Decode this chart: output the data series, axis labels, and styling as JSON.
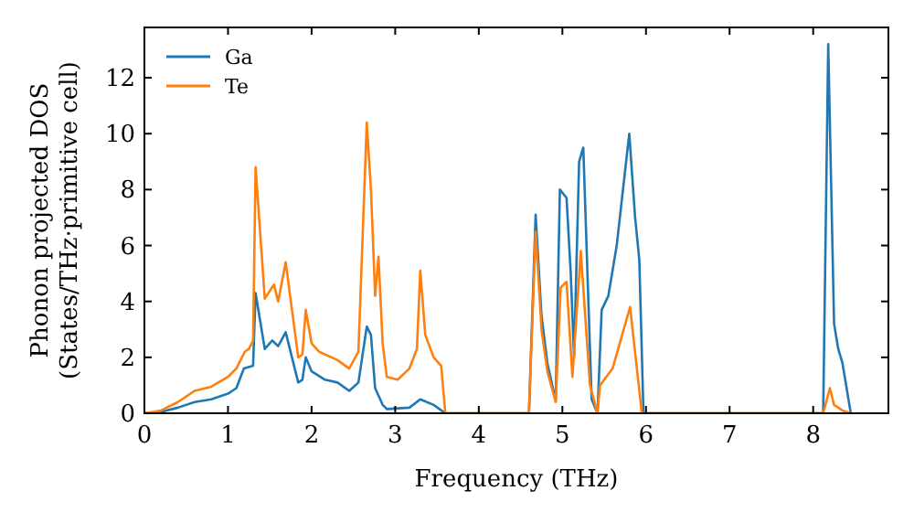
{
  "chart_data": {
    "type": "line",
    "xlabel": "Frequency (THz)",
    "ylabel": "Phonon projected DOS\n(States/THz·primitive cell)",
    "xlim": [
      0,
      8.9
    ],
    "ylim": [
      0,
      13.8
    ],
    "xticks": [
      0,
      1,
      2,
      3,
      4,
      5,
      6,
      7,
      8
    ],
    "yticks": [
      0,
      2,
      4,
      6,
      8,
      10,
      12
    ],
    "legend": "top left",
    "grid": false,
    "series": [
      {
        "name": "Ga",
        "color": "#1f77b4",
        "x": [
          0,
          0.2,
          0.4,
          0.6,
          0.8,
          1.0,
          1.1,
          1.19,
          1.3,
          1.33,
          1.44,
          1.53,
          1.6,
          1.69,
          1.84,
          1.89,
          1.93,
          2.0,
          2.16,
          2.31,
          2.45,
          2.56,
          2.66,
          2.71,
          2.76,
          2.85,
          2.9,
          3.17,
          3.3,
          3.46,
          3.6,
          4.6,
          4.68,
          4.75,
          4.82,
          4.92,
          4.97,
          5.05,
          5.1,
          5.14,
          5.2,
          5.25,
          5.3,
          5.35,
          5.42,
          5.47,
          5.55,
          5.65,
          5.8,
          5.87,
          5.92,
          5.97,
          8.12,
          8.18,
          8.25,
          8.3,
          8.35,
          8.45
        ],
        "values": [
          0,
          0.05,
          0.2,
          0.4,
          0.5,
          0.7,
          0.9,
          1.6,
          1.7,
          4.3,
          2.3,
          2.6,
          2.4,
          2.9,
          1.1,
          1.2,
          2.0,
          1.5,
          1.2,
          1.1,
          0.8,
          1.1,
          3.1,
          2.8,
          0.9,
          0.3,
          0.15,
          0.2,
          0.5,
          0.3,
          0,
          0,
          7.1,
          3.5,
          1.8,
          0.45,
          8.0,
          7.7,
          5.0,
          2.0,
          9.0,
          9.5,
          5.0,
          0.5,
          0,
          3.7,
          4.2,
          6.0,
          10.0,
          7.0,
          5.5,
          0,
          0,
          13.2,
          3.2,
          2.3,
          1.8,
          0
        ]
      },
      {
        "name": "Te",
        "color": "#ff7f0e",
        "x": [
          0,
          0.2,
          0.4,
          0.6,
          0.8,
          1.0,
          1.1,
          1.2,
          1.25,
          1.3,
          1.33,
          1.44,
          1.55,
          1.6,
          1.69,
          1.84,
          1.89,
          1.93,
          2.0,
          2.09,
          2.31,
          2.45,
          2.56,
          2.66,
          2.71,
          2.76,
          2.8,
          2.85,
          2.9,
          3.03,
          3.17,
          3.26,
          3.3,
          3.36,
          3.46,
          3.55,
          3.6,
          4.6,
          4.68,
          4.75,
          4.82,
          4.92,
          4.98,
          5.05,
          5.12,
          5.22,
          5.33,
          5.42,
          5.45,
          5.6,
          5.81,
          5.95,
          8.12,
          8.2,
          8.25,
          8.35,
          8.45
        ],
        "values": [
          0,
          0.1,
          0.4,
          0.8,
          0.95,
          1.3,
          1.6,
          2.2,
          2.3,
          2.6,
          8.8,
          4.1,
          4.6,
          4.0,
          5.4,
          2.0,
          2.1,
          3.7,
          2.5,
          2.2,
          1.9,
          1.6,
          2.2,
          10.4,
          8.0,
          4.2,
          5.6,
          2.5,
          1.3,
          1.2,
          1.6,
          2.3,
          5.1,
          2.8,
          2.0,
          1.7,
          0,
          0,
          6.5,
          3.0,
          1.5,
          0.4,
          4.5,
          4.7,
          1.3,
          5.8,
          1.0,
          0,
          1.0,
          1.6,
          3.8,
          0,
          0,
          0.9,
          0.3,
          0.1,
          0
        ]
      }
    ]
  }
}
